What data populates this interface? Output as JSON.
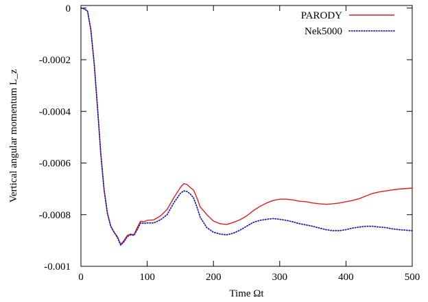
{
  "chart_data": {
    "type": "line",
    "xlabel": "Time Ωt",
    "ylabel": "Vertical angular momentum L_z",
    "xlim": [
      0,
      500
    ],
    "ylim": [
      -0.001,
      1e-05
    ],
    "xticks": [
      0,
      100,
      200,
      300,
      400,
      500
    ],
    "xtick_labels": [
      "0",
      "100",
      "200",
      "300",
      "400",
      "500"
    ],
    "yticks": [
      0,
      -0.0002,
      -0.0004,
      -0.0006,
      -0.0008,
      -0.001
    ],
    "ytick_labels": [
      "0",
      "-0.0002",
      "-0.0004",
      "-0.0006",
      "-0.0008",
      "-0.001"
    ],
    "grid": false,
    "legend_position": "top-right",
    "series": [
      {
        "name": "PARODY",
        "color": "#e41a1c",
        "style": "solid",
        "x": [
          0,
          5,
          10,
          15,
          20,
          25,
          30,
          35,
          40,
          45,
          50,
          55,
          60,
          65,
          70,
          75,
          80,
          85,
          90,
          95,
          100,
          110,
          120,
          130,
          140,
          150,
          155,
          160,
          165,
          170,
          175,
          180,
          190,
          200,
          210,
          220,
          230,
          240,
          250,
          260,
          270,
          280,
          290,
          300,
          310,
          320,
          330,
          340,
          350,
          360,
          370,
          380,
          390,
          400,
          410,
          420,
          430,
          440,
          450,
          460,
          470,
          480,
          490,
          500
        ],
        "y": [
          0,
          -3e-06,
          -1.2e-05,
          -8.5e-05,
          -0.000215,
          -0.000385,
          -0.000565,
          -0.000705,
          -0.000795,
          -0.000845,
          -0.000868,
          -0.000885,
          -0.000915,
          -0.0009,
          -0.00088,
          -0.000875,
          -0.000878,
          -0.00085,
          -0.000825,
          -0.000828,
          -0.000822,
          -0.00082,
          -0.000805,
          -0.00078,
          -0.000735,
          -0.000695,
          -0.00068,
          -0.000683,
          -0.000695,
          -0.000705,
          -0.000735,
          -0.00077,
          -0.0008,
          -0.000825,
          -0.000835,
          -0.000838,
          -0.00083,
          -0.00082,
          -0.000805,
          -0.000785,
          -0.000768,
          -0.000755,
          -0.000745,
          -0.00074,
          -0.00074,
          -0.000743,
          -0.000748,
          -0.00075,
          -0.000755,
          -0.000758,
          -0.00076,
          -0.000758,
          -0.000755,
          -0.00075,
          -0.000745,
          -0.000738,
          -0.000728,
          -0.000718,
          -0.000712,
          -0.000708,
          -0.000704,
          -0.000701,
          -0.000699,
          -0.000697
        ]
      },
      {
        "name": "Nek5000",
        "color": "#1f1fb4",
        "style": "dotted",
        "x": [
          0,
          5,
          10,
          15,
          20,
          25,
          30,
          35,
          40,
          45,
          50,
          55,
          60,
          65,
          70,
          75,
          80,
          85,
          90,
          95,
          100,
          110,
          120,
          130,
          140,
          150,
          155,
          160,
          165,
          170,
          175,
          180,
          190,
          200,
          210,
          220,
          230,
          240,
          250,
          260,
          270,
          280,
          290,
          300,
          310,
          320,
          330,
          340,
          350,
          360,
          370,
          380,
          390,
          400,
          410,
          420,
          430,
          440,
          450,
          460,
          470,
          480,
          490,
          500
        ],
        "y": [
          0,
          -3e-06,
          -1.2e-05,
          -8.5e-05,
          -0.000215,
          -0.000385,
          -0.000565,
          -0.000705,
          -0.000795,
          -0.000845,
          -0.000868,
          -0.000888,
          -0.000918,
          -0.000905,
          -0.000885,
          -0.000878,
          -0.00088,
          -0.000858,
          -0.000832,
          -0.000834,
          -0.000832,
          -0.000832,
          -0.00082,
          -0.0008,
          -0.000755,
          -0.000718,
          -0.000708,
          -0.00071,
          -0.00072,
          -0.000735,
          -0.00077,
          -0.00081,
          -0.00085,
          -0.000868,
          -0.000875,
          -0.000878,
          -0.000872,
          -0.00086,
          -0.000845,
          -0.00083,
          -0.000822,
          -0.000818,
          -0.000815,
          -0.000818,
          -0.000822,
          -0.000828,
          -0.000835,
          -0.00084,
          -0.000845,
          -0.000852,
          -0.000858,
          -0.000862,
          -0.000862,
          -0.000858,
          -0.000852,
          -0.000848,
          -0.000845,
          -0.000845,
          -0.000848,
          -0.00085,
          -0.000855,
          -0.000858,
          -0.00086,
          -0.000862
        ]
      }
    ]
  }
}
